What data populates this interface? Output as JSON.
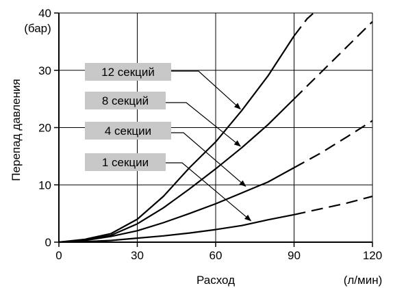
{
  "chart_data": {
    "type": "line",
    "x_label": "Расход",
    "x_unit": "(л/мин)",
    "y_label": "Перепад давления",
    "y_unit": "(бар)",
    "xlim": [
      0,
      120
    ],
    "ylim": [
      0,
      40
    ],
    "x_ticks": [
      "0",
      "30",
      "60",
      "90",
      "120"
    ],
    "y_ticks": [
      "0",
      "10",
      "20",
      "30",
      "40"
    ],
    "grid": true,
    "series": [
      {
        "name": "12 секций",
        "solid": [
          [
            0,
            0
          ],
          [
            10,
            0.5
          ],
          [
            20,
            1.5
          ],
          [
            30,
            4
          ],
          [
            40,
            8
          ],
          [
            50,
            13
          ],
          [
            60,
            17.5
          ],
          [
            70,
            23
          ],
          [
            80,
            29
          ],
          [
            90,
            36
          ]
        ],
        "dashed": [
          [
            90,
            36
          ],
          [
            95,
            39
          ],
          [
            97.5,
            40
          ]
        ]
      },
      {
        "name": "8 секций",
        "solid": [
          [
            0,
            0
          ],
          [
            10,
            0.4
          ],
          [
            20,
            1.2
          ],
          [
            30,
            3.2
          ],
          [
            40,
            6
          ],
          [
            50,
            9.3
          ],
          [
            60,
            12.8
          ],
          [
            70,
            16.5
          ],
          [
            80,
            20.5
          ],
          [
            90,
            25
          ]
        ],
        "dashed": [
          [
            90,
            25
          ],
          [
            100,
            29.5
          ],
          [
            110,
            34
          ],
          [
            120,
            38.5
          ]
        ]
      },
      {
        "name": "4 секции",
        "solid": [
          [
            0,
            0
          ],
          [
            10,
            0.3
          ],
          [
            20,
            1
          ],
          [
            30,
            2
          ],
          [
            40,
            3.4
          ],
          [
            50,
            5
          ],
          [
            60,
            6.7
          ],
          [
            70,
            8.6
          ],
          [
            80,
            10.5
          ],
          [
            90,
            13
          ]
        ],
        "dashed": [
          [
            90,
            13
          ],
          [
            100,
            15.5
          ],
          [
            110,
            18.3
          ],
          [
            120,
            21.2
          ]
        ]
      },
      {
        "name": "1 секции",
        "solid": [
          [
            0,
            0
          ],
          [
            10,
            0.1
          ],
          [
            20,
            0.3
          ],
          [
            30,
            0.7
          ],
          [
            40,
            1.1
          ],
          [
            50,
            1.6
          ],
          [
            60,
            2.2
          ],
          [
            70,
            2.9
          ],
          [
            80,
            3.9
          ],
          [
            90,
            4.8
          ]
        ],
        "dashed": [
          [
            90,
            4.8
          ],
          [
            100,
            5.8
          ],
          [
            110,
            6.8
          ],
          [
            120,
            8
          ]
        ]
      }
    ],
    "annotations": [
      {
        "series": "12 секций",
        "point": [
          70,
          23
        ]
      },
      {
        "series": "8 секций",
        "point": [
          70,
          16.5
        ]
      },
      {
        "series": "4 секции",
        "point": [
          72,
          9.5
        ]
      },
      {
        "series": "1 секции",
        "point": [
          74,
          3.5
        ]
      }
    ],
    "colors": {
      "line": "#000000",
      "grid": "#000000",
      "label_box": "#c8c8c8",
      "background": "#ffffff"
    }
  }
}
